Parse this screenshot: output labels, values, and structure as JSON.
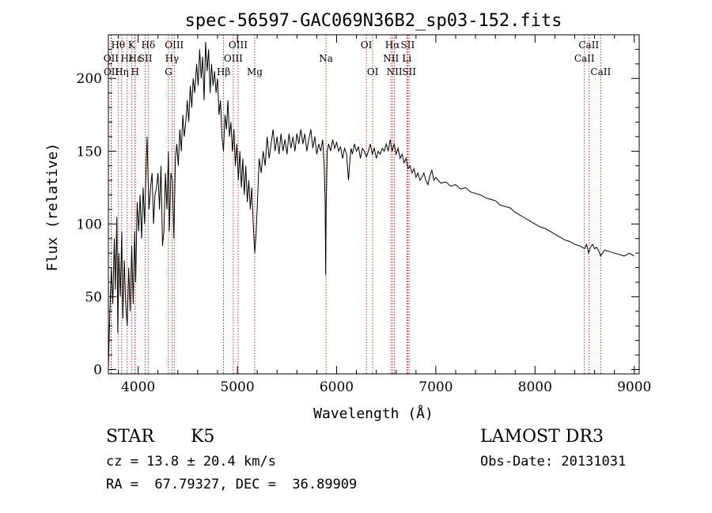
{
  "chart_data": {
    "type": "line",
    "title": "spec-56597-GAC069N36B2_sp03-152.fits",
    "xlabel": "Wavelength (Å)",
    "ylabel": "Flux (relative)",
    "xlim": [
      3700,
      9050
    ],
    "ylim": [
      -3,
      230
    ],
    "x_ticks": [
      4000,
      5000,
      6000,
      7000,
      8000,
      9000
    ],
    "y_ticks": [
      0,
      50,
      100,
      150,
      200
    ],
    "grid": false,
    "series": [
      {
        "points": [
          [
            3700,
            2
          ],
          [
            3715,
            40
          ],
          [
            3730,
            70
          ],
          [
            3745,
            45
          ],
          [
            3760,
            90
          ],
          [
            3770,
            55
          ],
          [
            3785,
            105
          ],
          [
            3795,
            25
          ],
          [
            3805,
            80
          ],
          [
            3820,
            50
          ],
          [
            3835,
            95
          ],
          [
            3845,
            35
          ],
          [
            3860,
            75
          ],
          [
            3875,
            45
          ],
          [
            3890,
            30
          ],
          [
            3905,
            70
          ],
          [
            3920,
            40
          ],
          [
            3935,
            85
          ],
          [
            3950,
            45
          ],
          [
            3965,
            95
          ],
          [
            3975,
            60
          ],
          [
            3990,
            115
          ],
          [
            4005,
            95
          ],
          [
            4020,
            120
          ],
          [
            4035,
            90
          ],
          [
            4050,
            125
          ],
          [
            4065,
            100
          ],
          [
            4080,
            140
          ],
          [
            4090,
            160
          ],
          [
            4100,
            130
          ],
          [
            4110,
            110
          ],
          [
            4125,
            125
          ],
          [
            4140,
            135
          ],
          [
            4155,
            100
          ],
          [
            4170,
            120
          ],
          [
            4185,
            125
          ],
          [
            4200,
            135
          ],
          [
            4215,
            110
          ],
          [
            4230,
            140
          ],
          [
            4245,
            85
          ],
          [
            4260,
            95
          ],
          [
            4275,
            135
          ],
          [
            4290,
            110
          ],
          [
            4305,
            150
          ],
          [
            4315,
            95
          ],
          [
            4330,
            135
          ],
          [
            4345,
            130
          ],
          [
            4360,
            90
          ],
          [
            4375,
            145
          ],
          [
            4390,
            155
          ],
          [
            4405,
            140
          ],
          [
            4420,
            165
          ],
          [
            4435,
            150
          ],
          [
            4450,
            175
          ],
          [
            4465,
            160
          ],
          [
            4480,
            170
          ],
          [
            4495,
            185
          ],
          [
            4510,
            170
          ],
          [
            4525,
            195
          ],
          [
            4540,
            180
          ],
          [
            4555,
            200
          ],
          [
            4570,
            190
          ],
          [
            4590,
            210
          ],
          [
            4605,
            195
          ],
          [
            4620,
            220
          ],
          [
            4635,
            200
          ],
          [
            4650,
            215
          ],
          [
            4665,
            185
          ],
          [
            4680,
            225
          ],
          [
            4695,
            205
          ],
          [
            4710,
            220
          ],
          [
            4725,
            190
          ],
          [
            4740,
            210
          ],
          [
            4755,
            195
          ],
          [
            4770,
            205
          ],
          [
            4785,
            190
          ],
          [
            4800,
            200
          ],
          [
            4815,
            175
          ],
          [
            4830,
            185
          ],
          [
            4845,
            160
          ],
          [
            4860,
            150
          ],
          [
            4875,
            175
          ],
          [
            4890,
            165
          ],
          [
            4905,
            185
          ],
          [
            4920,
            160
          ],
          [
            4935,
            170
          ],
          [
            4950,
            150
          ],
          [
            4965,
            165
          ],
          [
            4980,
            140
          ],
          [
            4995,
            155
          ],
          [
            5010,
            130
          ],
          [
            5025,
            150
          ],
          [
            5040,
            125
          ],
          [
            5055,
            145
          ],
          [
            5070,
            120
          ],
          [
            5085,
            140
          ],
          [
            5100,
            115
          ],
          [
            5115,
            130
          ],
          [
            5130,
            110
          ],
          [
            5145,
            125
          ],
          [
            5160,
            100
          ],
          [
            5175,
            80
          ],
          [
            5190,
            95
          ],
          [
            5205,
            120
          ],
          [
            5220,
            145
          ],
          [
            5240,
            135
          ],
          [
            5260,
            150
          ],
          [
            5280,
            140
          ],
          [
            5300,
            160
          ],
          [
            5320,
            145
          ],
          [
            5340,
            155
          ],
          [
            5360,
            165
          ],
          [
            5380,
            150
          ],
          [
            5400,
            160
          ],
          [
            5420,
            148
          ],
          [
            5440,
            162
          ],
          [
            5460,
            150
          ],
          [
            5480,
            158
          ],
          [
            5500,
            148
          ],
          [
            5520,
            162
          ],
          [
            5540,
            152
          ],
          [
            5560,
            160
          ],
          [
            5580,
            150
          ],
          [
            5600,
            162
          ],
          [
            5620,
            155
          ],
          [
            5640,
            165
          ],
          [
            5660,
            155
          ],
          [
            5680,
            162
          ],
          [
            5700,
            150
          ],
          [
            5720,
            158
          ],
          [
            5740,
            165
          ],
          [
            5760,
            152
          ],
          [
            5780,
            160
          ],
          [
            5800,
            148
          ],
          [
            5820,
            155
          ],
          [
            5840,
            150
          ],
          [
            5860,
            158
          ],
          [
            5875,
            140
          ],
          [
            5885,
            115
          ],
          [
            5890,
            65
          ],
          [
            5895,
            110
          ],
          [
            5905,
            150
          ],
          [
            5920,
            155
          ],
          [
            5940,
            150
          ],
          [
            5960,
            158
          ],
          [
            5980,
            152
          ],
          [
            6000,
            156
          ],
          [
            6020,
            150
          ],
          [
            6040,
            153
          ],
          [
            6060,
            145
          ],
          [
            6080,
            152
          ],
          [
            6100,
            148
          ],
          [
            6120,
            130
          ],
          [
            6130,
            140
          ],
          [
            6145,
            152
          ],
          [
            6160,
            148
          ],
          [
            6180,
            155
          ],
          [
            6200,
            150
          ],
          [
            6220,
            153
          ],
          [
            6240,
            145
          ],
          [
            6260,
            152
          ],
          [
            6280,
            150
          ],
          [
            6300,
            146
          ],
          [
            6320,
            150
          ],
          [
            6340,
            155
          ],
          [
            6360,
            148
          ],
          [
            6380,
            152
          ],
          [
            6400,
            145
          ],
          [
            6420,
            150
          ],
          [
            6440,
            148
          ],
          [
            6460,
            152
          ],
          [
            6480,
            150
          ],
          [
            6500,
            155
          ],
          [
            6520,
            150
          ],
          [
            6540,
            158
          ],
          [
            6560,
            150
          ],
          [
            6580,
            155
          ],
          [
            6600,
            148
          ],
          [
            6620,
            152
          ],
          [
            6640,
            145
          ],
          [
            6660,
            148
          ],
          [
            6680,
            142
          ],
          [
            6700,
            145
          ],
          [
            6720,
            138
          ],
          [
            6740,
            140
          ],
          [
            6760,
            135
          ],
          [
            6780,
            138
          ],
          [
            6800,
            132
          ],
          [
            6820,
            135
          ],
          [
            6840,
            130
          ],
          [
            6860,
            132
          ],
          [
            6880,
            135
          ],
          [
            6900,
            130
          ],
          [
            6920,
            127
          ],
          [
            6940,
            133
          ],
          [
            6960,
            137
          ],
          [
            6980,
            130
          ],
          [
            7000,
            132
          ],
          [
            7050,
            128
          ],
          [
            7100,
            129
          ],
          [
            7150,
            126
          ],
          [
            7200,
            127
          ],
          [
            7250,
            124
          ],
          [
            7300,
            125
          ],
          [
            7350,
            122
          ],
          [
            7400,
            121
          ],
          [
            7450,
            120
          ],
          [
            7500,
            118
          ],
          [
            7550,
            117
          ],
          [
            7600,
            116
          ],
          [
            7650,
            113
          ],
          [
            7700,
            112
          ],
          [
            7750,
            111
          ],
          [
            7800,
            108
          ],
          [
            7850,
            106
          ],
          [
            7900,
            104
          ],
          [
            7950,
            102
          ],
          [
            8000,
            100
          ],
          [
            8050,
            98
          ],
          [
            8100,
            97
          ],
          [
            8150,
            95
          ],
          [
            8200,
            93
          ],
          [
            8250,
            91
          ],
          [
            8300,
            89
          ],
          [
            8350,
            88
          ],
          [
            8400,
            86
          ],
          [
            8450,
            85
          ],
          [
            8500,
            83
          ],
          [
            8520,
            86
          ],
          [
            8540,
            80
          ],
          [
            8560,
            84
          ],
          [
            8580,
            86
          ],
          [
            8600,
            83
          ],
          [
            8620,
            84
          ],
          [
            8640,
            82
          ],
          [
            8660,
            78
          ],
          [
            8680,
            80
          ],
          [
            8700,
            82
          ],
          [
            8750,
            81
          ],
          [
            8800,
            80
          ],
          [
            8850,
            79
          ],
          [
            8900,
            78
          ],
          [
            8950,
            80
          ],
          [
            9000,
            78
          ]
        ]
      }
    ],
    "line_markers": [
      {
        "label": "Hθ",
        "wavelength": 3798,
        "row": 1
      },
      {
        "label": "OII",
        "wavelength": 3727,
        "row": 2
      },
      {
        "label": "OII",
        "wavelength": 3729,
        "row": 3
      },
      {
        "label": "Hε",
        "wavelength": 3889,
        "row": 2
      },
      {
        "label": "Hη",
        "wavelength": 3835,
        "row": 3
      },
      {
        "label": "K",
        "wavelength": 3934,
        "row": 1
      },
      {
        "label": "Hε",
        "wavelength": 3970,
        "row": 2
      },
      {
        "label": "H",
        "wavelength": 3969,
        "row": 3
      },
      {
        "label": "SII",
        "wavelength": 4072,
        "row": 2
      },
      {
        "label": "Hδ",
        "wavelength": 4102,
        "row": 1
      },
      {
        "label": "OIII",
        "wavelength": 4364,
        "row": 1
      },
      {
        "label": "Hγ",
        "wavelength": 4341,
        "row": 2
      },
      {
        "label": "G",
        "wavelength": 4305,
        "row": 3
      },
      {
        "label": "Hβ",
        "wavelength": 4861,
        "row": 3
      },
      {
        "label": "OIII",
        "wavelength": 5007,
        "row": 1
      },
      {
        "label": "OIII",
        "wavelength": 4959,
        "row": 2
      },
      {
        "label": "Mg",
        "wavelength": 5175,
        "row": 3
      },
      {
        "label": "Na",
        "wavelength": 5893,
        "row": 2
      },
      {
        "label": "OI",
        "wavelength": 6300,
        "row": 1
      },
      {
        "label": "OI",
        "wavelength": 6364,
        "row": 3
      },
      {
        "label": "Hα",
        "wavelength": 6563,
        "row": 1
      },
      {
        "label": "NII",
        "wavelength": 6548,
        "row": 2
      },
      {
        "label": "NII",
        "wavelength": 6583,
        "row": 3
      },
      {
        "label": "SII",
        "wavelength": 6717,
        "row": 1
      },
      {
        "label": "Li",
        "wavelength": 6708,
        "row": 2
      },
      {
        "label": "SII",
        "wavelength": 6731,
        "row": 3
      },
      {
        "label": "CaII",
        "wavelength": 8542,
        "row": 1
      },
      {
        "label": "CaII",
        "wavelength": 8498,
        "row": 2
      },
      {
        "label": "CaII",
        "wavelength": 8662,
        "row": 3
      }
    ]
  },
  "info": {
    "object_class": "STAR",
    "subclass": "K5",
    "survey": "LAMOST DR3",
    "redshift": "cz = 13.8 ± 20.4 km/s",
    "obs_date": "Obs-Date: 20131031",
    "coords": "RA =  67.79327, DEC =  36.89909"
  }
}
